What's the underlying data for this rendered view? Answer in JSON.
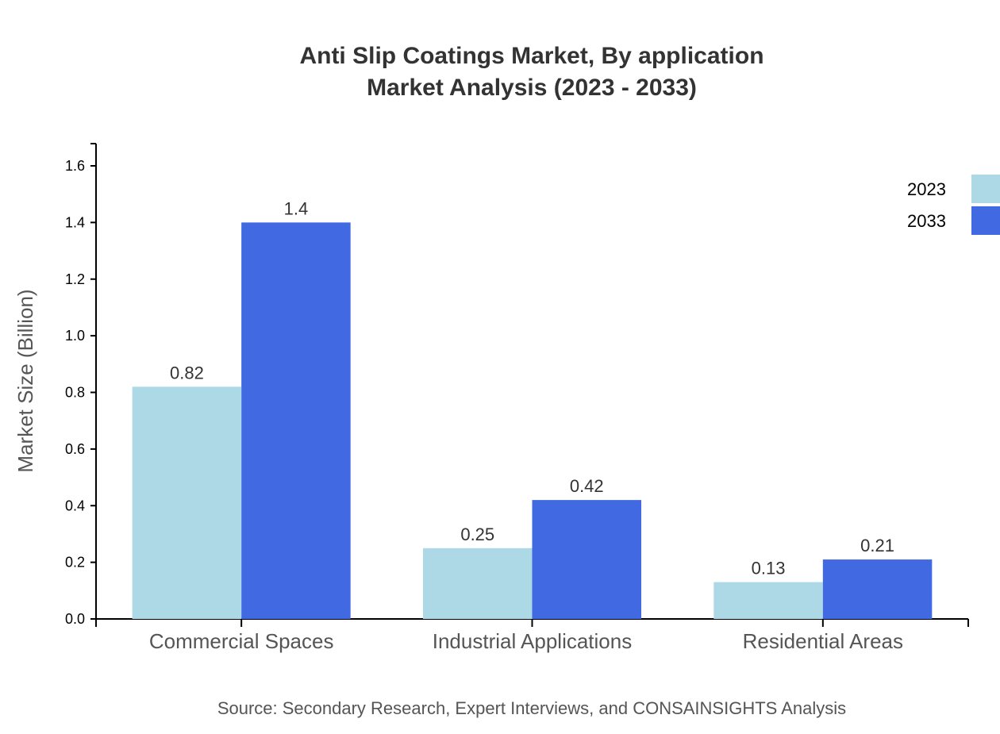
{
  "chart_data": {
    "type": "bar",
    "title": "Anti Slip Coatings Market, By application",
    "subtitle": "Market Analysis (2023 - 2033)",
    "xlabel": "",
    "ylabel": "Market Size (Billion)",
    "ylim": [
      0,
      1.68
    ],
    "yticks": [
      "0.0",
      "0.2",
      "0.4",
      "0.6",
      "0.8",
      "1.0",
      "1.2",
      "1.4",
      "1.6"
    ],
    "categories": [
      "Commercial Spaces",
      "Industrial Applications",
      "Residential Areas"
    ],
    "series": [
      {
        "name": "2023",
        "values": [
          0.82,
          0.25,
          0.13
        ],
        "labels": [
          "0.82",
          "0.25",
          "0.13"
        ],
        "color": "#add8e6"
      },
      {
        "name": "2033",
        "values": [
          1.4,
          0.42,
          0.21
        ],
        "labels": [
          "1.4",
          "0.42",
          "0.21"
        ],
        "color": "#4169e1"
      }
    ],
    "grid": false,
    "legend": "top-right",
    "source": "Source: Secondary Research, Expert Interviews, and CONSAINSIGHTS Analysis"
  }
}
